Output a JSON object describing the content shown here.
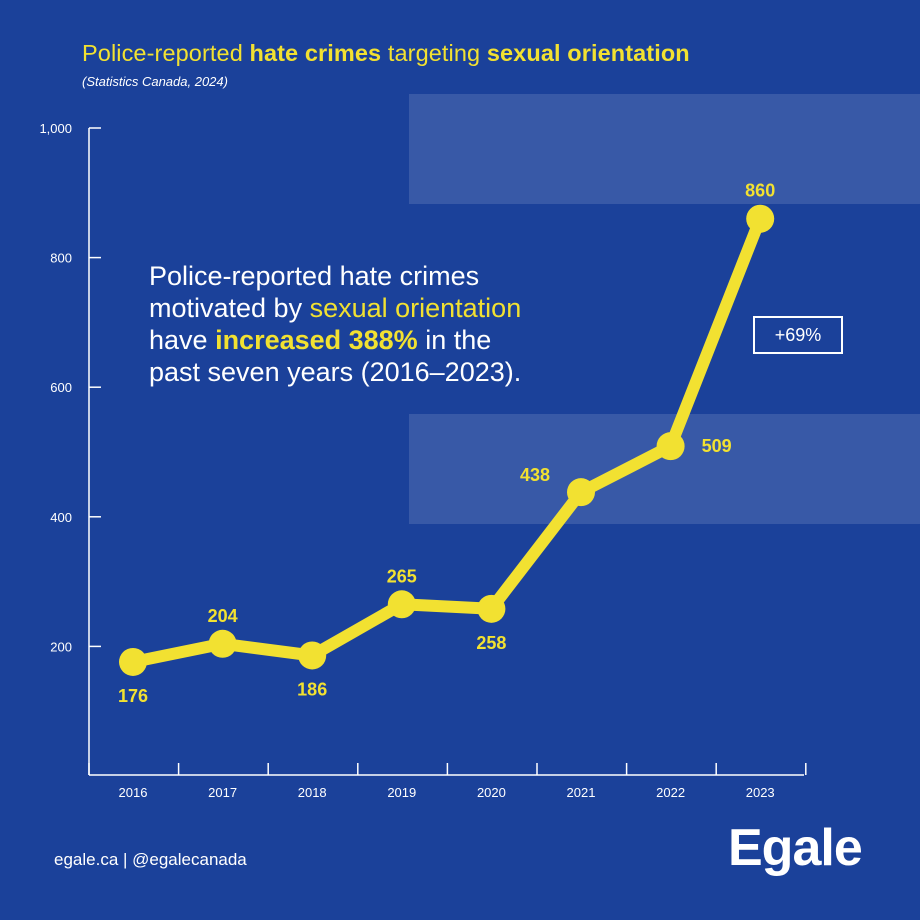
{
  "title": {
    "part1": "Police-reported ",
    "bold1": "hate crimes",
    "part2": " targeting ",
    "bold2": "sexual orientation"
  },
  "subtitle": "(Statistics Canada, 2024)",
  "callout": {
    "line1": "Police-reported hate crimes",
    "line2_pre": "motivated by ",
    "line2_hl": "sexual orientation",
    "line3_pre": "have ",
    "line3_hl": "increased 388%",
    "line3_post": " in the",
    "line4": "past seven years (2016–2023)."
  },
  "change_badge": "+69%",
  "footer": "egale.ca | @egalecanada",
  "logo": "Egale",
  "colors": {
    "background": "#1b419a",
    "accent": "#f2e131",
    "text": "#ffffff"
  },
  "chart_data": {
    "type": "line",
    "title": "Police-reported hate crimes targeting sexual orientation",
    "categories": [
      "2016",
      "2017",
      "2018",
      "2019",
      "2020",
      "2021",
      "2022",
      "2023"
    ],
    "values": [
      176,
      204,
      186,
      265,
      258,
      438,
      509,
      860
    ],
    "data_labels": [
      "176",
      "204",
      "186",
      "265",
      "258",
      "438",
      "509",
      "860"
    ],
    "y_ticks": [
      "1,000",
      "800",
      "600",
      "400",
      "200"
    ],
    "y_tick_values": [
      1000,
      800,
      600,
      400,
      200
    ],
    "ylim": [
      0,
      1000
    ],
    "grid": false,
    "legend": "none"
  }
}
